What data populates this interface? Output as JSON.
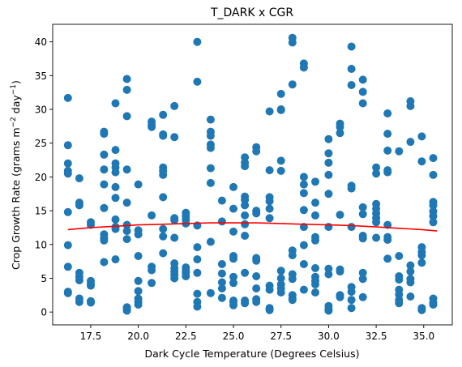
{
  "chart_data": {
    "type": "scatter",
    "title": "T_DARK x CGR",
    "xlabel": "Dark Cycle Temperature (Degrees Celsius)",
    "ylabel_parts": [
      "Crop Growth Rate (grams m",
      "−2",
      " day",
      "−1",
      ")"
    ],
    "xlim": [
      15.5,
      36.5
    ],
    "ylim": [
      -1.9,
      42.6
    ],
    "x_ticks": [
      17.5,
      20.0,
      22.5,
      25.0,
      27.5,
      30.0,
      32.5,
      35.0
    ],
    "x_tick_labels": [
      "17.5",
      "20.0",
      "22.5",
      "25.0",
      "27.5",
      "30.0",
      "32.5",
      "35.0"
    ],
    "y_ticks": [
      0,
      5,
      10,
      15,
      20,
      25,
      30,
      35,
      40
    ],
    "y_tick_labels": [
      "0",
      "5",
      "10",
      "15",
      "20",
      "25",
      "30",
      "35",
      "40"
    ],
    "grid": false,
    "point_color": "#1f77b4",
    "trend_color": "#ff0000",
    "columns": [
      {
        "x": 16.3,
        "y": [
          31.7,
          24.7,
          22.0,
          20.9,
          20.5,
          14.8,
          9.9,
          6.7,
          3.0,
          2.8
        ]
      },
      {
        "x": 16.9,
        "y": [
          19.8,
          16.2,
          15.8,
          5.8,
          5.2,
          4.7,
          2.0,
          1.5
        ]
      },
      {
        "x": 17.5,
        "y": [
          13.3,
          12.9,
          4.6,
          4.2,
          3.9,
          1.6,
          1.4
        ]
      },
      {
        "x": 18.2,
        "y": [
          26.7,
          26.4,
          23.3,
          21.1,
          18.9,
          15.4,
          11.5,
          11.0,
          10.6,
          7.4
        ]
      },
      {
        "x": 18.8,
        "y": [
          30.9,
          24.0,
          22.0,
          21.4,
          20.7,
          18.5,
          16.9,
          13.7,
          12.6,
          12.3,
          7.8
        ]
      },
      {
        "x": 19.4,
        "y": [
          34.5,
          32.9,
          29.0,
          21.1,
          16.2,
          12.9,
          12.0,
          10.8,
          0.7,
          0.4,
          0.2
        ]
      },
      {
        "x": 20.0,
        "y": [
          18.9,
          12.1,
          11.5,
          8.3,
          4.6,
          3.1,
          2.0,
          1.5,
          1.1
        ]
      },
      {
        "x": 20.7,
        "y": [
          28.2,
          27.7,
          27.4,
          14.3,
          6.7,
          6.2,
          4.3
        ]
      },
      {
        "x": 21.3,
        "y": [
          29.2,
          26.3,
          26.1,
          21.4,
          20.9,
          20.3,
          17.0,
          12.3,
          11.2,
          8.7
        ]
      },
      {
        "x": 21.9,
        "y": [
          30.5,
          25.9,
          13.9,
          13.6,
          11.0,
          7.2,
          6.5,
          6.0,
          5.5,
          5.0
        ]
      },
      {
        "x": 22.5,
        "y": [
          14.7,
          14.2,
          13.7,
          13.1,
          6.6,
          6.1,
          5.8,
          5.3
        ]
      },
      {
        "x": 23.1,
        "y": [
          40.0,
          34.1,
          12.8,
          9.6,
          7.8,
          5.8,
          2.7,
          1.5,
          0.8
        ]
      },
      {
        "x": 23.8,
        "y": [
          28.5,
          26.7,
          26.1,
          24.8,
          24.3,
          21.3,
          19.1,
          10.4,
          2.8
        ]
      },
      {
        "x": 24.4,
        "y": [
          16.5,
          13.4,
          7.1,
          5.7,
          4.4,
          3.5,
          2.1
        ]
      },
      {
        "x": 25.0,
        "y": [
          18.5,
          15.3,
          11.9,
          8.3,
          7.9,
          5.2,
          4.3,
          1.7,
          1.5,
          1.0
        ]
      },
      {
        "x": 25.6,
        "y": [
          22.9,
          22.1,
          21.6,
          17.1,
          16.6,
          15.8,
          14.3,
          13.0,
          11.3,
          5.8,
          1.7,
          1.3
        ]
      },
      {
        "x": 26.2,
        "y": [
          24.4,
          23.8,
          15.0,
          14.6,
          8.0,
          7.6,
          5.3,
          3.5,
          1.9,
          1.5
        ]
      },
      {
        "x": 26.9,
        "y": [
          29.7,
          21.0,
          17.0,
          16.4,
          15.3,
          13.9,
          3.9,
          3.3,
          0.6,
          0.3
        ]
      },
      {
        "x": 27.5,
        "y": [
          32.3,
          30.0,
          29.9,
          22.4,
          20.9,
          6.1,
          5.0,
          4.1,
          3.5,
          2.9
        ]
      },
      {
        "x": 28.1,
        "y": [
          40.6,
          39.9,
          33.7,
          9.1,
          8.4,
          5.6,
          4.9,
          2.5,
          2.0,
          1.8
        ]
      },
      {
        "x": 28.7,
        "y": [
          36.8,
          36.2,
          20.0,
          18.9,
          17.6,
          15.1,
          12.6,
          9.9,
          7.1,
          3.3
        ]
      },
      {
        "x": 29.3,
        "y": [
          19.3,
          16.2,
          14.3,
          11.1,
          10.6,
          6.5,
          5.2,
          4.6,
          4.1,
          2.9
        ]
      },
      {
        "x": 30.0,
        "y": [
          25.6,
          23.5,
          22.1,
          20.3,
          17.5,
          12.6,
          6.4,
          5.6,
          0.9,
          0.4,
          0.2
        ]
      },
      {
        "x": 30.6,
        "y": [
          27.9,
          27.4,
          26.5,
          14.4,
          6.3,
          6.0,
          2.5,
          2.2
        ]
      },
      {
        "x": 31.2,
        "y": [
          39.3,
          36.0,
          33.6,
          18.7,
          18.3,
          12.6,
          3.7,
          3.0,
          1.8,
          0.6
        ]
      },
      {
        "x": 31.8,
        "y": [
          34.4,
          32.6,
          30.9,
          15.5,
          14.5,
          11.3,
          10.9,
          5.8,
          4.9,
          2.2
        ]
      },
      {
        "x": 32.5,
        "y": [
          21.4,
          20.5,
          16.0,
          15.3,
          14.6,
          13.9,
          13.3,
          11.0
        ]
      },
      {
        "x": 33.1,
        "y": [
          29.4,
          26.4,
          23.9,
          21.0,
          20.7,
          12.9,
          11.1,
          10.7,
          7.9
        ]
      },
      {
        "x": 33.7,
        "y": [
          23.8,
          8.3,
          5.3,
          4.8,
          3.3,
          2.6,
          1.8,
          1.3
        ]
      },
      {
        "x": 34.3,
        "y": [
          31.2,
          30.5,
          25.2,
          6.9,
          6.0,
          4.9,
          4.4,
          2.3
        ]
      },
      {
        "x": 34.9,
        "y": [
          26.0,
          22.3,
          9.6,
          8.9,
          8.4,
          7.3,
          0.6,
          0.3
        ]
      },
      {
        "x": 35.5,
        "y": [
          22.8,
          20.3,
          16.3,
          15.8,
          14.9,
          14.2,
          13.3,
          2.0,
          1.4,
          1.1
        ]
      }
    ],
    "trend": {
      "x": [
        16.3,
        17.5,
        18.8,
        20.0,
        21.3,
        22.5,
        23.8,
        25.0,
        26.2,
        27.5,
        28.7,
        30.0,
        31.2,
        32.5,
        33.7,
        34.9,
        35.7
      ],
      "y": [
        12.2,
        12.5,
        12.7,
        12.9,
        13.0,
        13.1,
        13.2,
        13.2,
        13.2,
        13.1,
        13.0,
        12.9,
        12.8,
        12.6,
        12.4,
        12.2,
        12.0
      ]
    }
  }
}
